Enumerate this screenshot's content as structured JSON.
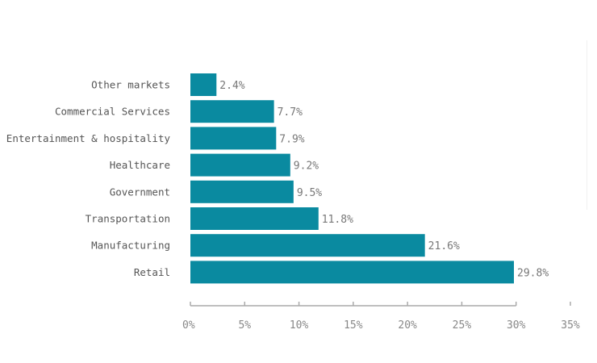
{
  "chart_data": {
    "type": "bar",
    "orientation": "horizontal",
    "title": "",
    "xlabel": "",
    "ylabel": "",
    "categories": [
      "Other markets",
      "Commercial Services",
      "Entertainment & hospitality",
      "Healthcare",
      "Government",
      "Transportation",
      "Manufacturing",
      "Retail"
    ],
    "values": [
      2.4,
      7.7,
      7.9,
      9.2,
      9.5,
      11.8,
      21.6,
      29.8
    ],
    "value_labels": [
      "2.4%",
      "7.7%",
      "7.9%",
      "9.2%",
      "9.5%",
      "11.8%",
      "21.6%",
      "29.8%"
    ],
    "xlim": [
      0,
      35
    ],
    "ticks": [
      0,
      5,
      10,
      15,
      20,
      25,
      30,
      35
    ],
    "tick_labels": [
      "0%",
      "5%",
      "10%",
      "15%",
      "20%",
      "25%",
      "30%",
      "35%"
    ],
    "grid": false,
    "legend": "none",
    "bar_color": "#0a8aa0",
    "axis_color": "#aaaaaa"
  }
}
